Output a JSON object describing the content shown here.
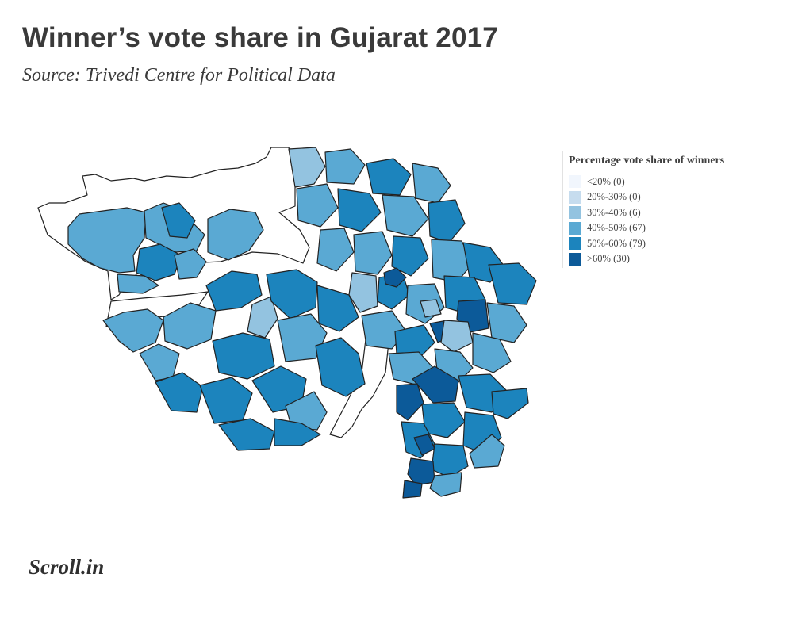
{
  "header": {
    "title": "Winner’s vote share in Gujarat 2017",
    "source": "Source: Trivedi Centre for Political Data"
  },
  "legend": {
    "title": "Percentage vote share of winners",
    "items": [
      {
        "label": "<20% (0)",
        "color": "#f1f6fd"
      },
      {
        "label": "20%-30% (0)",
        "color": "#c6dcee"
      },
      {
        "label": "30%-40% (6)",
        "color": "#93c3e0"
      },
      {
        "label": "40%-50% (67)",
        "color": "#5aa9d3"
      },
      {
        "label": "50%-60% (79)",
        "color": "#1c84bd"
      },
      {
        "label": ">60% (30)",
        "color": "#0c5a99"
      }
    ]
  },
  "map": {
    "region": "Gujarat",
    "outline_color": "#222222",
    "unshaded_color": "#ffffff"
  },
  "footer": {
    "logo": "Scroll.in"
  }
}
